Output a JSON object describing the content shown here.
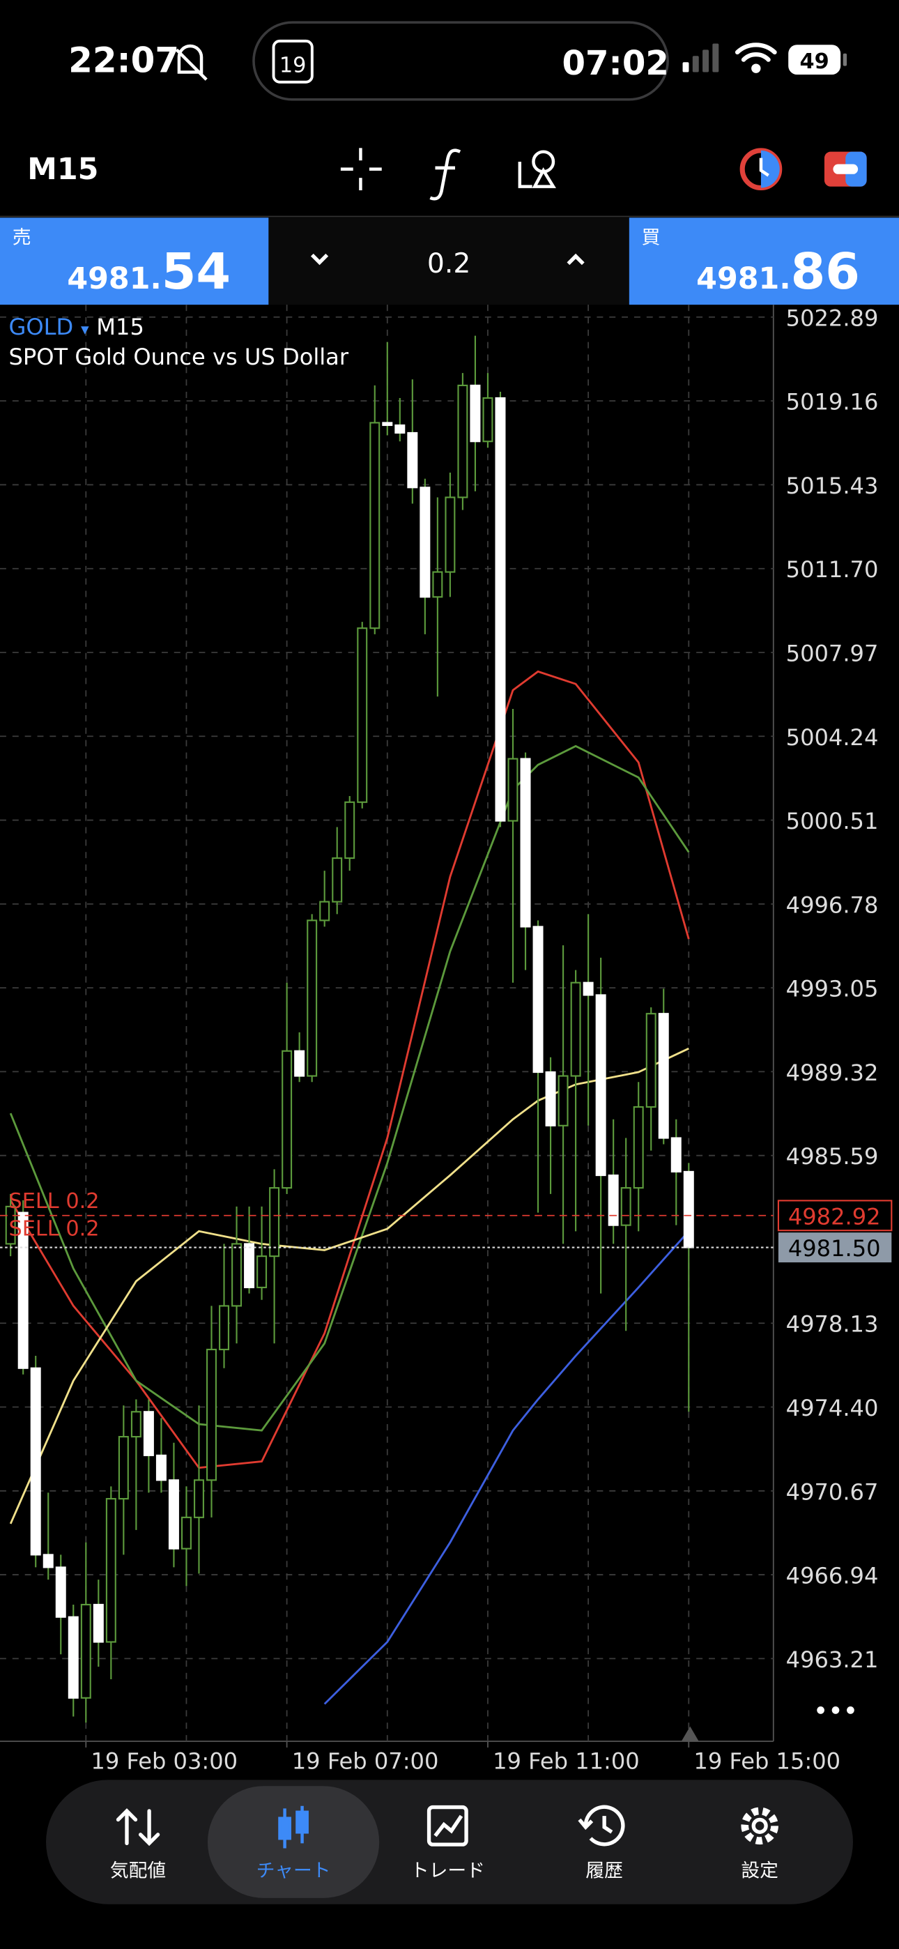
{
  "status_bar": {
    "time": "22:07",
    "island_date": "19",
    "island_time": "07:02",
    "battery": "49"
  },
  "toolbar": {
    "timeframe": "M15"
  },
  "trade_panel": {
    "sell": {
      "label": "売",
      "price_main": "4981.",
      "price_big": "54"
    },
    "volume": "0.2",
    "buy": {
      "label": "買",
      "price_main": "4981.",
      "price_big": "86"
    }
  },
  "chart_data": {
    "type": "candlestick",
    "symbol": "GOLD",
    "symbol_arrow": "▾",
    "timeframe": "M15",
    "description": "SPOT Gold Ounce vs US Dollar",
    "candles": {
      "open": [
        4981.66,
        4983.05,
        4976.13,
        4967.83,
        4967.27,
        4965.06,
        4961.46,
        4965.61,
        4963.95,
        4970.32,
        4973.08,
        4974.19,
        4972.25,
        4971.15,
        4968.1,
        4969.49,
        4971.15,
        4976.96,
        4978.9,
        4981.66,
        4979.72,
        4981.11,
        4984.15,
        4990.24,
        4989.13,
        4996.05,
        4996.88,
        4998.82,
        5001.31,
        5009.05,
        5018.19,
        5018.08,
        5017.74,
        5015.31,
        5010.44,
        5011.55,
        5014.87,
        5019.85,
        5017.36,
        5019.29,
        5000.48,
        5003.24,
        4995.77,
        4989.3,
        4986.92,
        4989.13,
        4993.28,
        4992.73,
        4984.71,
        4982.49,
        4984.15,
        4987.75,
        4991.9,
        4986.37,
        4984.87
      ],
      "high": [
        4983.88,
        4983.6,
        4976.68,
        4970.59,
        4967.83,
        4965.61,
        4968.38,
        4966.72,
        4970.87,
        4974.47,
        4974.74,
        4974.74,
        4973.91,
        4972.81,
        4970.87,
        4974.47,
        4978.9,
        4981.66,
        4983.32,
        4983.32,
        4983.32,
        4984.98,
        4993.28,
        4991.07,
        4996.33,
        4998.26,
        5000.2,
        5001.58,
        5009.33,
        5019.85,
        5021.78,
        5019.29,
        5020.12,
        5015.7,
        5014.87,
        5015.97,
        5020.4,
        5022.06,
        5020.4,
        5019.57,
        5005.46,
        5003.52,
        4996.05,
        4989.96,
        4994.94,
        4993.84,
        4996.33,
        4994.39,
        4987.2,
        4986.37,
        4988.86,
        4992.18,
        4993.01,
        4987.2,
        4985.26
      ],
      "low": [
        4981.11,
        4975.85,
        4967.27,
        4966.72,
        4963.4,
        4960.63,
        4960.36,
        4962.85,
        4962.29,
        4967.83,
        4968.93,
        4970.59,
        4970.59,
        4967.27,
        4966.44,
        4966.99,
        4969.49,
        4976.13,
        4977.23,
        4979.45,
        4979.17,
        4977.23,
        4983.88,
        4988.86,
        4988.86,
        4995.77,
        4996.33,
        4998.26,
        5001.03,
        5008.78,
        5017.63,
        5017.36,
        5014.59,
        5008.78,
        5006.01,
        5010.44,
        5014.31,
        5015.14,
        5017.08,
        5000.2,
        4993.28,
        4993.84,
        4983.05,
        4983.88,
        4981.66,
        4982.22,
        4986.92,
        4979.45,
        4981.66,
        4977.79,
        4982.22,
        4985.81,
        4986.09,
        4982.49,
        4974.19
      ],
      "close": [
        4983.32,
        4976.13,
        4967.83,
        4967.27,
        4965.06,
        4961.46,
        4965.61,
        4963.95,
        4970.32,
        4973.08,
        4974.19,
        4972.25,
        4971.15,
        4968.1,
        4969.49,
        4971.15,
        4976.96,
        4978.9,
        4981.66,
        4979.72,
        4981.11,
        4984.15,
        4990.24,
        4989.13,
        4996.05,
        4996.88,
        4998.82,
        5001.31,
        5009.05,
        5018.19,
        5018.08,
        5017.74,
        5015.31,
        5010.44,
        5011.55,
        5014.87,
        5019.85,
        5017.36,
        5019.29,
        5000.48,
        5003.24,
        4995.77,
        4989.3,
        4986.92,
        4989.13,
        4993.28,
        4992.73,
        4984.71,
        4982.49,
        4984.15,
        4987.75,
        4991.9,
        4986.37,
        4984.87,
        4981.5
      ]
    },
    "up_color": "#5c9a3c",
    "down_color": "#ffffff",
    "wick_color": "#5c9a3c",
    "indicators": [
      {
        "color": "#e03b30",
        "x": [
          0,
          5,
          10,
          15,
          20,
          25,
          30,
          35,
          40,
          42,
          45,
          50,
          54
        ],
        "values": [
          4983.6,
          4978.9,
          4975.57,
          4971.7,
          4971.98,
          4977.68,
          4986.37,
          4997.99,
          5006.29,
          5007.12,
          5006.57,
          5003.08,
          4995.22
        ]
      },
      {
        "color": "#5c9a3c",
        "x": [
          0,
          5,
          10,
          15,
          20,
          25,
          30,
          35,
          40,
          42,
          45,
          50,
          54
        ],
        "values": [
          4987.47,
          4980.56,
          4975.57,
          4973.64,
          4973.36,
          4977.23,
          4985.26,
          4994.67,
          5001.86,
          5002.97,
          5003.8,
          5002.41,
          4999.09
        ]
      },
      {
        "color": "#f0e08a",
        "x": [
          0,
          5,
          10,
          15,
          20,
          25,
          30,
          35,
          40,
          42,
          45,
          50,
          54
        ],
        "values": [
          4969.21,
          4975.57,
          4980.0,
          4982.22,
          4981.66,
          4981.38,
          4982.33,
          4984.71,
          4987.2,
          4988.03,
          4988.75,
          4989.3,
          4990.35
        ]
      },
      {
        "color": "#3d5fe0",
        "x": [
          0,
          5,
          10,
          15,
          20,
          25,
          30,
          35,
          40,
          42,
          45,
          50,
          54
        ],
        "values": [
          null,
          null,
          null,
          null,
          null,
          4961.19,
          4963.95,
          4968.38,
          4973.36,
          4974.74,
          4976.68,
          4979.72,
          4982.22
        ]
      }
    ],
    "ylim": [
      4959.53,
      5023.44
    ],
    "yticks": [
      5022.89,
      5019.16,
      5015.43,
      {
        "value": 5011.7,
        "label": "5011.70"
      },
      5007.97,
      5004.24,
      5000.51,
      4996.78,
      4993.05,
      4989.32,
      4985.59,
      4978.13,
      {
        "value": 4974.4,
        "label": "4974.40"
      },
      4970.67,
      4966.94,
      4963.21
    ],
    "xticks": [
      {
        "value": 6,
        "label": "19 Feb 03:00"
      },
      {
        "value": 22,
        "label": "19 Feb 07:00"
      },
      {
        "value": 38,
        "label": "19 Feb 11:00"
      },
      {
        "value": 54,
        "label": "19 Feb 15:00"
      }
    ],
    "grid": true,
    "orders": {
      "labels": [
        "SELL 0.2",
        "SELL 0.2"
      ],
      "price": 4982.92,
      "color": "#e03b30"
    },
    "bid": {
      "value": 4981.5,
      "label": "4981.50"
    }
  },
  "nav": {
    "items": [
      "気配値",
      "チャート",
      "トレード",
      "履歴",
      "設定"
    ],
    "active": 1
  }
}
